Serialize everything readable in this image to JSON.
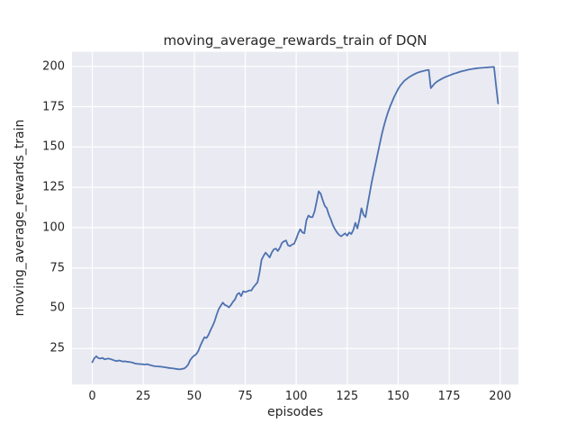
{
  "colors": {
    "figure_bg": "#ffffff",
    "plot_bg": "#eaeaf2",
    "grid": "#ffffff",
    "line": "#4c72b0",
    "text": "#262626"
  },
  "chart_data": {
    "type": "line",
    "title": "moving_average_rewards_train of DQN",
    "xlabel": "episodes",
    "ylabel": "moving_average_rewards_train",
    "x_ticks": [
      0,
      25,
      50,
      75,
      100,
      125,
      150,
      175,
      200
    ],
    "y_ticks": [
      25,
      50,
      75,
      100,
      125,
      150,
      175,
      200
    ],
    "xlim": [
      -9.95,
      208.95
    ],
    "ylim": [
      2.7,
      209.0
    ],
    "grid": true,
    "legend_position": "none",
    "series": [
      {
        "name": "moving_average_rewards_train",
        "points": [
          [
            0,
            16.5
          ],
          [
            1,
            19.0
          ],
          [
            2,
            20.2
          ],
          [
            3,
            19.0
          ],
          [
            4,
            18.8
          ],
          [
            5,
            19.2
          ],
          [
            6,
            18.3
          ],
          [
            7,
            18.6
          ],
          [
            8,
            18.8
          ],
          [
            9,
            18.4
          ],
          [
            10,
            18.0
          ],
          [
            11,
            17.5
          ],
          [
            12,
            17.2
          ],
          [
            13,
            17.6
          ],
          [
            14,
            17.3
          ],
          [
            15,
            16.9
          ],
          [
            16,
            17.1
          ],
          [
            17,
            16.8
          ],
          [
            18,
            16.7
          ],
          [
            19,
            16.5
          ],
          [
            20,
            16.2
          ],
          [
            21,
            15.7
          ],
          [
            22,
            15.5
          ],
          [
            23,
            15.4
          ],
          [
            24,
            15.3
          ],
          [
            25,
            15.2
          ],
          [
            26,
            15.1
          ],
          [
            27,
            15.3
          ],
          [
            28,
            14.8
          ],
          [
            29,
            14.5
          ],
          [
            30,
            14.2
          ],
          [
            31,
            14.0
          ],
          [
            32,
            13.9
          ],
          [
            33,
            13.8
          ],
          [
            34,
            13.7
          ],
          [
            35,
            13.5
          ],
          [
            36,
            13.3
          ],
          [
            37,
            13.1
          ],
          [
            38,
            12.9
          ],
          [
            39,
            12.8
          ],
          [
            40,
            12.6
          ],
          [
            41,
            12.4
          ],
          [
            42,
            12.2
          ],
          [
            43,
            12.1
          ],
          [
            44,
            12.4
          ],
          [
            45,
            12.6
          ],
          [
            46,
            13.5
          ],
          [
            47,
            15.0
          ],
          [
            48,
            17.8
          ],
          [
            49,
            19.5
          ],
          [
            50,
            20.6
          ],
          [
            51,
            21.5
          ],
          [
            52,
            23.5
          ],
          [
            53,
            26.8
          ],
          [
            54,
            29.5
          ],
          [
            55,
            32.0
          ],
          [
            56,
            31.5
          ],
          [
            57,
            33.5
          ],
          [
            58,
            36.5
          ],
          [
            59,
            39.0
          ],
          [
            60,
            42.0
          ],
          [
            61,
            46.0
          ],
          [
            62,
            49.5
          ],
          [
            63,
            51.5
          ],
          [
            64,
            53.5
          ],
          [
            65,
            52.0
          ],
          [
            66,
            51.5
          ],
          [
            67,
            50.5
          ],
          [
            68,
            52.0
          ],
          [
            69,
            54.0
          ],
          [
            70,
            55.5
          ],
          [
            71,
            58.5
          ],
          [
            72,
            59.5
          ],
          [
            73,
            57.5
          ],
          [
            74,
            60.5
          ],
          [
            75,
            60.0
          ],
          [
            76,
            60.5
          ],
          [
            77,
            61.0
          ],
          [
            78,
            61.0
          ],
          [
            79,
            63.0
          ],
          [
            80,
            64.5
          ],
          [
            81,
            66.0
          ],
          [
            82,
            72.0
          ],
          [
            83,
            80.0
          ],
          [
            84,
            82.5
          ],
          [
            85,
            84.5
          ],
          [
            86,
            83.0
          ],
          [
            87,
            81.5
          ],
          [
            88,
            84.5
          ],
          [
            89,
            86.5
          ],
          [
            90,
            87.0
          ],
          [
            91,
            85.5
          ],
          [
            92,
            87.5
          ],
          [
            93,
            90.5
          ],
          [
            94,
            91.5
          ],
          [
            95,
            92.0
          ],
          [
            96,
            89.0
          ],
          [
            97,
            88.5
          ],
          [
            98,
            89.5
          ],
          [
            99,
            90.0
          ],
          [
            100,
            93.0
          ],
          [
            101,
            96.5
          ],
          [
            102,
            99.0
          ],
          [
            103,
            97.0
          ],
          [
            104,
            96.5
          ],
          [
            105,
            104.5
          ],
          [
            106,
            107.5
          ],
          [
            107,
            106.5
          ],
          [
            108,
            106.5
          ],
          [
            109,
            110.0
          ],
          [
            110,
            116.0
          ],
          [
            111,
            122.5
          ],
          [
            112,
            121.0
          ],
          [
            113,
            117.0
          ],
          [
            114,
            113.5
          ],
          [
            115,
            112.0
          ],
          [
            116,
            108.0
          ],
          [
            117,
            105.0
          ],
          [
            118,
            101.5
          ],
          [
            119,
            99.0
          ],
          [
            120,
            97.0
          ],
          [
            121,
            95.5
          ],
          [
            122,
            94.6
          ],
          [
            123,
            95.5
          ],
          [
            124,
            96.4
          ],
          [
            125,
            95.0
          ],
          [
            126,
            97.0
          ],
          [
            127,
            96.0
          ],
          [
            128,
            98.5
          ],
          [
            129,
            103.0
          ],
          [
            130,
            99.5
          ],
          [
            131,
            105.0
          ],
          [
            132,
            112.0
          ],
          [
            133,
            108.0
          ],
          [
            134,
            106.5
          ],
          [
            135,
            114.0
          ],
          [
            136,
            121.0
          ],
          [
            137,
            128.0
          ],
          [
            138,
            134.0
          ],
          [
            139,
            140.0
          ],
          [
            140,
            146.0
          ],
          [
            141,
            152.0
          ],
          [
            142,
            158.0
          ],
          [
            143,
            163.0
          ],
          [
            144,
            167.5
          ],
          [
            145,
            171.5
          ],
          [
            146,
            175.0
          ],
          [
            147,
            178.0
          ],
          [
            148,
            181.0
          ],
          [
            149,
            183.5
          ],
          [
            150,
            186.0
          ],
          [
            151,
            188.0
          ],
          [
            152,
            189.5
          ],
          [
            153,
            191.0
          ],
          [
            154,
            192.0
          ],
          [
            155,
            193.0
          ],
          [
            156,
            193.8
          ],
          [
            157,
            194.5
          ],
          [
            158,
            195.2
          ],
          [
            159,
            195.8
          ],
          [
            160,
            196.3
          ],
          [
            161,
            196.7
          ],
          [
            162,
            197.0
          ],
          [
            163,
            197.3
          ],
          [
            164,
            197.6
          ],
          [
            165,
            197.8
          ],
          [
            166,
            186.5
          ],
          [
            167,
            188.0
          ],
          [
            168,
            189.5
          ],
          [
            169,
            190.5
          ],
          [
            170,
            191.3
          ],
          [
            171,
            192.0
          ],
          [
            172,
            192.7
          ],
          [
            173,
            193.3
          ],
          [
            174,
            193.8
          ],
          [
            175,
            194.3
          ],
          [
            176,
            194.8
          ],
          [
            177,
            195.3
          ],
          [
            178,
            195.7
          ],
          [
            179,
            196.1
          ],
          [
            180,
            196.5
          ],
          [
            181,
            196.9
          ],
          [
            182,
            197.2
          ],
          [
            183,
            197.5
          ],
          [
            184,
            197.8
          ],
          [
            185,
            198.1
          ],
          [
            186,
            198.3
          ],
          [
            187,
            198.5
          ],
          [
            188,
            198.7
          ],
          [
            189,
            198.9
          ],
          [
            190,
            199.0
          ],
          [
            191,
            199.1
          ],
          [
            192,
            199.2
          ],
          [
            193,
            199.3
          ],
          [
            194,
            199.4
          ],
          [
            195,
            199.5
          ],
          [
            196,
            199.6
          ],
          [
            197,
            199.6
          ],
          [
            198,
            188.0
          ],
          [
            199,
            177.0
          ]
        ]
      }
    ]
  }
}
